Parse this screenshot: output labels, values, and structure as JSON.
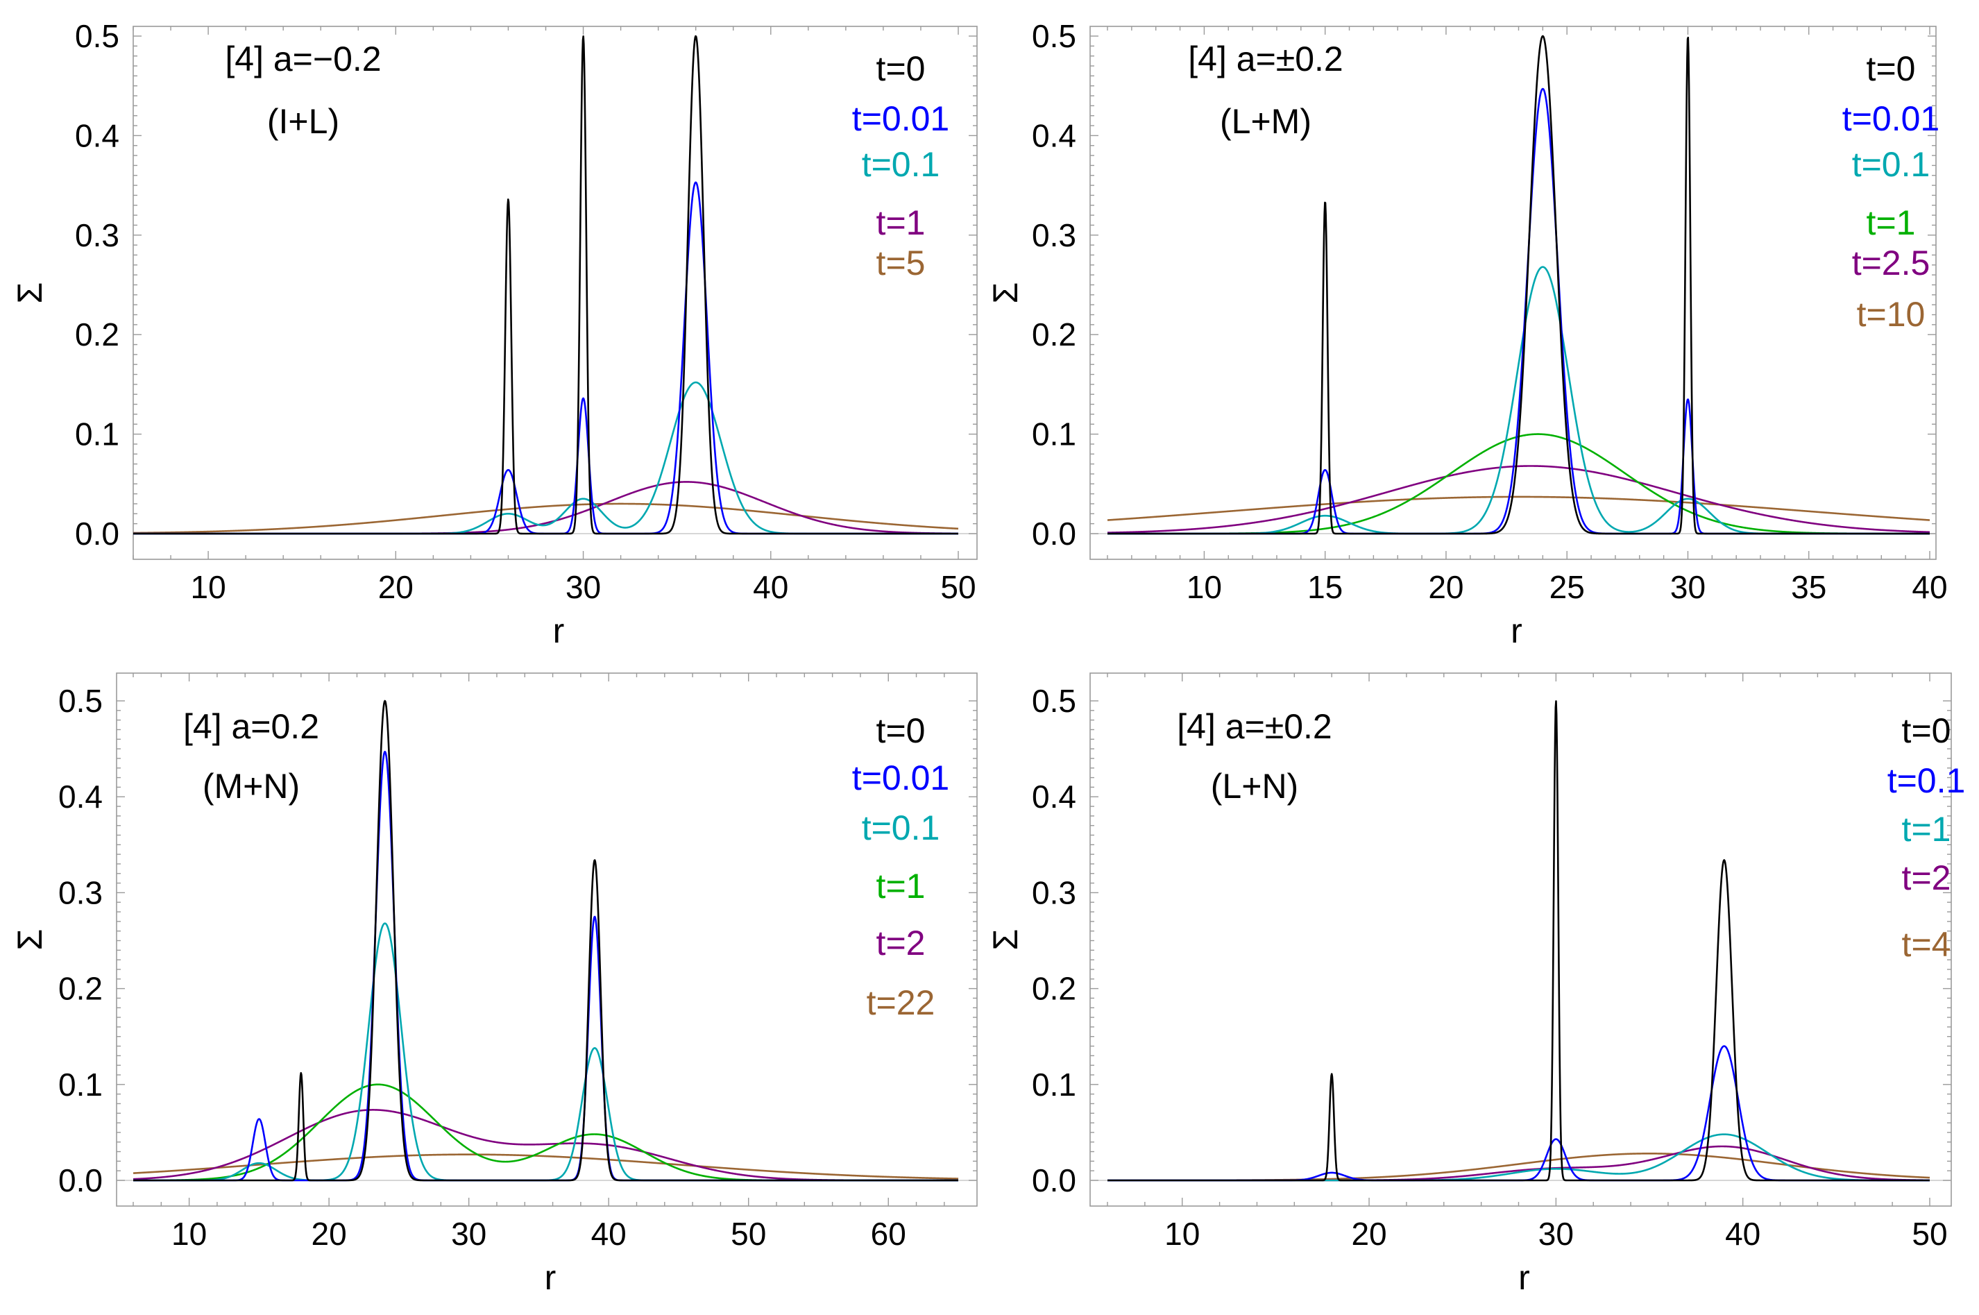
{
  "figure": {
    "colors": {
      "black": "#000000",
      "blue": "#0000ff",
      "cyan": "#00a8b0",
      "green": "#00b000",
      "purple": "#800080",
      "brown": "#9b6633",
      "frame": "#9a9a9a"
    }
  },
  "chart_data": [
    {
      "type": "line",
      "id": "top-left",
      "title": "[4] a=−0.2",
      "subtitle": "(I+L)",
      "xlabel": "r",
      "ylabel": "Σ",
      "xlim": [
        6,
        50
      ],
      "ylim": [
        0,
        0.5
      ],
      "xticks": [
        10,
        20,
        30,
        40,
        50
      ],
      "yticks": [
        0.0,
        0.1,
        0.2,
        0.3,
        0.4,
        0.5
      ],
      "ytick_labels": [
        "0.0",
        "0.1",
        "0.2",
        "0.3",
        "0.4",
        "0.5"
      ],
      "series": [
        {
          "name": "t=0",
          "color": "black",
          "peaks": [
            [
              26,
              0.336,
              0.16
            ],
            [
              30,
              0.5,
              0.16
            ],
            [
              36,
              0.5,
              0.42
            ]
          ]
        },
        {
          "name": "t=0.01",
          "color": "blue",
          "peaks": [
            [
              26,
              0.064,
              0.45
            ],
            [
              30,
              0.136,
              0.28
            ],
            [
              36,
              0.353,
              0.6
            ]
          ]
        },
        {
          "name": "t=0.1",
          "color": "cyan",
          "peaks": [
            [
              26,
              0.02,
              1.1
            ],
            [
              30,
              0.035,
              1.0
            ],
            [
              36,
              0.152,
              1.35
            ]
          ]
        },
        {
          "name": "t=1",
          "color": "purple",
          "peaks": [
            [
              35.5,
              0.052,
              4.2
            ]
          ]
        },
        {
          "name": "t=5",
          "color": "brown",
          "peaks": [
            [
              32,
              0.03,
              9.5
            ]
          ]
        }
      ]
    },
    {
      "type": "line",
      "id": "top-right",
      "title": "[4] a=±0.2",
      "subtitle": "(L+M)",
      "xlabel": "r",
      "ylabel": "Σ",
      "xlim": [
        6,
        40
      ],
      "ylim": [
        0,
        0.5
      ],
      "xticks": [
        10,
        15,
        20,
        25,
        30,
        35,
        40
      ],
      "yticks": [
        0.0,
        0.1,
        0.2,
        0.3,
        0.4,
        0.5
      ],
      "ytick_labels": [
        "0.0",
        "0.1",
        "0.2",
        "0.3",
        "0.4",
        "0.5"
      ],
      "series": [
        {
          "name": "t=0",
          "color": "black",
          "peaks": [
            [
              15,
              0.334,
              0.1
            ],
            [
              24,
              0.5,
              0.55
            ],
            [
              30,
              0.5,
              0.1
            ]
          ]
        },
        {
          "name": "t=0.01",
          "color": "blue",
          "peaks": [
            [
              15,
              0.064,
              0.28
            ],
            [
              24,
              0.447,
              0.62
            ],
            [
              30,
              0.135,
              0.18
            ]
          ]
        },
        {
          "name": "t=0.1",
          "color": "cyan",
          "peaks": [
            [
              15,
              0.018,
              1.0
            ],
            [
              24,
              0.268,
              1.05
            ],
            [
              30,
              0.035,
              0.9
            ]
          ]
        },
        {
          "name": "t=1",
          "color": "green",
          "peaks": [
            [
              23.8,
              0.1,
              3.6
            ]
          ]
        },
        {
          "name": "t=2.5",
          "color": "purple",
          "peaks": [
            [
              23.5,
              0.068,
              6.0
            ]
          ]
        },
        {
          "name": "t=10",
          "color": "brown",
          "peaks": [
            [
              23,
              0.037,
              12.0
            ]
          ]
        }
      ]
    },
    {
      "type": "line",
      "id": "bottom-left",
      "title": "[4] a=0.2",
      "subtitle": "(M+N)",
      "xlabel": "r",
      "ylabel": "Σ",
      "xlim": [
        6,
        65
      ],
      "ylim": [
        0,
        0.5
      ],
      "xticks": [
        10,
        20,
        30,
        40,
        50,
        60
      ],
      "yticks": [
        0.0,
        0.1,
        0.2,
        0.3,
        0.4,
        0.5
      ],
      "ytick_labels": [
        "0.0",
        "0.1",
        "0.2",
        "0.3",
        "0.4",
        "0.5"
      ],
      "series": [
        {
          "name": "t=0",
          "color": "black",
          "peaks": [
            [
              18,
              0.112,
              0.16
            ],
            [
              24,
              0.5,
              0.6
            ],
            [
              39,
              0.334,
              0.42
            ]
          ]
        },
        {
          "name": "t=0.01",
          "color": "blue",
          "peaks": [
            [
              15,
              0.064,
              0.45
            ],
            [
              24,
              0.447,
              0.66
            ],
            [
              39,
              0.275,
              0.45
            ]
          ]
        },
        {
          "name": "t=0.1",
          "color": "cyan",
          "peaks": [
            [
              15,
              0.018,
              1.2
            ],
            [
              24,
              0.268,
              1.15
            ],
            [
              39,
              0.138,
              0.9
            ]
          ]
        },
        {
          "name": "t=1",
          "color": "green",
          "peaks": [
            [
              23.5,
              0.1,
              4.2
            ],
            [
              39,
              0.048,
              3.6
            ]
          ]
        },
        {
          "name": "t=2",
          "color": "purple",
          "peaks": [
            [
              23,
              0.073,
              6.0
            ],
            [
              39,
              0.036,
              5.5
            ]
          ]
        },
        {
          "name": "t=22",
          "color": "brown",
          "peaks": [
            [
              30,
              0.027,
              15.0
            ]
          ]
        }
      ]
    },
    {
      "type": "line",
      "id": "bottom-right",
      "title": "[4] a=±0.2",
      "subtitle": "(L+N)",
      "xlabel": "r",
      "ylabel": "Σ",
      "xlim": [
        6,
        50
      ],
      "ylim": [
        0,
        0.5
      ],
      "xticks": [
        10,
        20,
        30,
        40,
        50
      ],
      "yticks": [
        0.0,
        0.1,
        0.2,
        0.3,
        0.4,
        0.5
      ],
      "ytick_labels": [
        "0.0",
        "0.1",
        "0.2",
        "0.3",
        "0.4",
        "0.5"
      ],
      "series": [
        {
          "name": "t=0",
          "color": "black",
          "peaks": [
            [
              18,
              0.111,
              0.12
            ],
            [
              30,
              0.5,
              0.12
            ],
            [
              39,
              0.334,
              0.42
            ]
          ]
        },
        {
          "name": "t=0.1",
          "color": "blue",
          "peaks": [
            [
              18,
              0.008,
              0.7
            ],
            [
              30,
              0.043,
              0.5
            ],
            [
              39,
              0.14,
              0.75
            ]
          ]
        },
        {
          "name": "t=1",
          "color": "cyan",
          "peaks": [
            [
              30,
              0.012,
              2.4
            ],
            [
              39,
              0.048,
              2.3
            ]
          ]
        },
        {
          "name": "t=2",
          "color": "purple",
          "peaks": [
            [
              30,
              0.012,
              3.5
            ],
            [
              39,
              0.035,
              3.3
            ]
          ]
        },
        {
          "name": "t=4",
          "color": "brown",
          "peaks": [
            [
              35,
              0.028,
              7.0
            ]
          ]
        }
      ]
    }
  ]
}
